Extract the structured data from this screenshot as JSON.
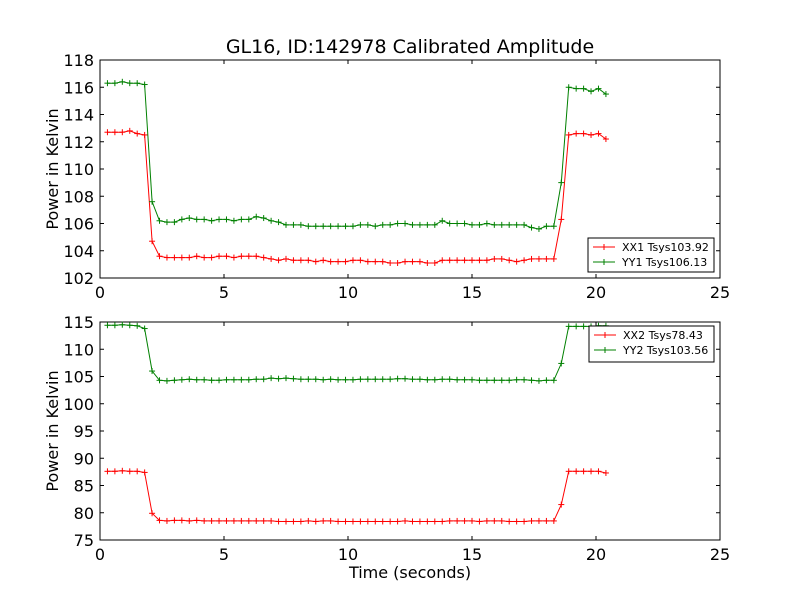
{
  "title": "GL16, ID:142978 Calibrated Amplitude",
  "chart_data": [
    {
      "type": "line",
      "ylabel": "Power in Kelvin",
      "xlabel": "",
      "xlim": [
        0,
        25
      ],
      "ylim": [
        102,
        118
      ],
      "xticks": [
        0,
        5,
        10,
        15,
        20,
        25
      ],
      "yticks": [
        102,
        104,
        106,
        108,
        110,
        112,
        114,
        116,
        118
      ],
      "legend_position": "lower-right",
      "x": [
        0.3,
        0.6,
        0.9,
        1.2,
        1.5,
        1.8,
        2.1,
        2.4,
        2.7,
        3.0,
        3.3,
        3.6,
        3.9,
        4.2,
        4.5,
        4.8,
        5.1,
        5.4,
        5.7,
        6.0,
        6.3,
        6.6,
        6.9,
        7.2,
        7.5,
        7.8,
        8.1,
        8.4,
        8.7,
        9.0,
        9.3,
        9.6,
        9.9,
        10.2,
        10.5,
        10.8,
        11.1,
        11.4,
        11.7,
        12.0,
        12.3,
        12.6,
        12.9,
        13.2,
        13.5,
        13.8,
        14.1,
        14.4,
        14.7,
        15.0,
        15.3,
        15.6,
        15.9,
        16.2,
        16.5,
        16.8,
        17.1,
        17.4,
        17.7,
        18.0,
        18.3,
        18.6,
        18.9,
        19.2,
        19.5,
        19.8,
        20.1,
        20.4
      ],
      "series": [
        {
          "name": "XX1 Tsys103.92",
          "color": "#ff0000",
          "values": [
            112.7,
            112.7,
            112.7,
            112.8,
            112.6,
            112.5,
            104.7,
            103.6,
            103.5,
            103.5,
            103.5,
            103.5,
            103.6,
            103.5,
            103.5,
            103.6,
            103.6,
            103.5,
            103.6,
            103.6,
            103.6,
            103.5,
            103.4,
            103.3,
            103.4,
            103.3,
            103.3,
            103.3,
            103.2,
            103.3,
            103.2,
            103.2,
            103.2,
            103.3,
            103.3,
            103.2,
            103.2,
            103.2,
            103.1,
            103.1,
            103.2,
            103.2,
            103.2,
            103.1,
            103.1,
            103.3,
            103.3,
            103.3,
            103.3,
            103.3,
            103.3,
            103.3,
            103.4,
            103.4,
            103.3,
            103.2,
            103.3,
            103.4,
            103.4,
            103.4,
            103.4,
            106.3,
            112.5,
            112.6,
            112.6,
            112.5,
            112.6,
            112.2
          ]
        },
        {
          "name": "YY1 Tsys106.13",
          "color": "#008000",
          "values": [
            116.3,
            116.3,
            116.4,
            116.3,
            116.3,
            116.2,
            107.6,
            106.2,
            106.1,
            106.1,
            106.3,
            106.4,
            106.3,
            106.3,
            106.2,
            106.3,
            106.3,
            106.2,
            106.3,
            106.3,
            106.5,
            106.4,
            106.2,
            106.1,
            105.9,
            105.9,
            105.9,
            105.8,
            105.8,
            105.8,
            105.8,
            105.8,
            105.8,
            105.8,
            105.9,
            105.9,
            105.8,
            105.9,
            105.9,
            106.0,
            106.0,
            105.9,
            105.9,
            105.9,
            105.9,
            106.2,
            106.0,
            106.0,
            106.0,
            105.9,
            105.9,
            106.0,
            105.9,
            105.9,
            105.9,
            105.9,
            105.9,
            105.7,
            105.6,
            105.8,
            105.8,
            109.0,
            116.0,
            115.9,
            115.9,
            115.7,
            115.9,
            115.5
          ]
        }
      ]
    },
    {
      "type": "line",
      "ylabel": "Power in Kelvin",
      "xlabel": "Time (seconds)",
      "xlim": [
        0,
        25
      ],
      "ylim": [
        75,
        115
      ],
      "xticks": [
        0,
        5,
        10,
        15,
        20,
        25
      ],
      "yticks": [
        75,
        80,
        85,
        90,
        95,
        100,
        105,
        110,
        115
      ],
      "legend_position": "upper-right",
      "x": [
        0.3,
        0.6,
        0.9,
        1.2,
        1.5,
        1.8,
        2.1,
        2.4,
        2.7,
        3.0,
        3.3,
        3.6,
        3.9,
        4.2,
        4.5,
        4.8,
        5.1,
        5.4,
        5.7,
        6.0,
        6.3,
        6.6,
        6.9,
        7.2,
        7.5,
        7.8,
        8.1,
        8.4,
        8.7,
        9.0,
        9.3,
        9.6,
        9.9,
        10.2,
        10.5,
        10.8,
        11.1,
        11.4,
        11.7,
        12.0,
        12.3,
        12.6,
        12.9,
        13.2,
        13.5,
        13.8,
        14.1,
        14.4,
        14.7,
        15.0,
        15.3,
        15.6,
        15.9,
        16.2,
        16.5,
        16.8,
        17.1,
        17.4,
        17.7,
        18.0,
        18.3,
        18.6,
        18.9,
        19.2,
        19.5,
        19.8,
        20.1,
        20.4
      ],
      "series": [
        {
          "name": "XX2 Tsys78.43",
          "color": "#ff0000",
          "values": [
            87.6,
            87.6,
            87.7,
            87.6,
            87.6,
            87.4,
            79.9,
            78.6,
            78.5,
            78.6,
            78.6,
            78.5,
            78.6,
            78.5,
            78.5,
            78.5,
            78.5,
            78.5,
            78.5,
            78.5,
            78.5,
            78.5,
            78.5,
            78.4,
            78.4,
            78.4,
            78.4,
            78.5,
            78.4,
            78.5,
            78.5,
            78.4,
            78.4,
            78.4,
            78.4,
            78.4,
            78.4,
            78.4,
            78.4,
            78.4,
            78.5,
            78.4,
            78.4,
            78.4,
            78.4,
            78.4,
            78.5,
            78.5,
            78.5,
            78.5,
            78.4,
            78.5,
            78.5,
            78.5,
            78.4,
            78.4,
            78.4,
            78.5,
            78.5,
            78.5,
            78.5,
            81.5,
            87.6,
            87.6,
            87.6,
            87.6,
            87.6,
            87.3
          ]
        },
        {
          "name": "YY2 Tsys103.56",
          "color": "#008000",
          "values": [
            114.4,
            114.4,
            114.5,
            114.4,
            114.3,
            113.8,
            106.0,
            104.3,
            104.2,
            104.3,
            104.4,
            104.5,
            104.4,
            104.4,
            104.3,
            104.3,
            104.4,
            104.4,
            104.4,
            104.4,
            104.5,
            104.5,
            104.7,
            104.6,
            104.7,
            104.6,
            104.5,
            104.5,
            104.5,
            104.4,
            104.5,
            104.4,
            104.4,
            104.4,
            104.5,
            104.5,
            104.5,
            104.5,
            104.5,
            104.6,
            104.6,
            104.5,
            104.5,
            104.4,
            104.4,
            104.5,
            104.5,
            104.4,
            104.4,
            104.4,
            104.3,
            104.3,
            104.3,
            104.3,
            104.3,
            104.4,
            104.4,
            104.3,
            104.2,
            104.3,
            104.3,
            107.4,
            114.2,
            114.2,
            114.2,
            114.2,
            114.3,
            114.3
          ]
        }
      ]
    }
  ]
}
